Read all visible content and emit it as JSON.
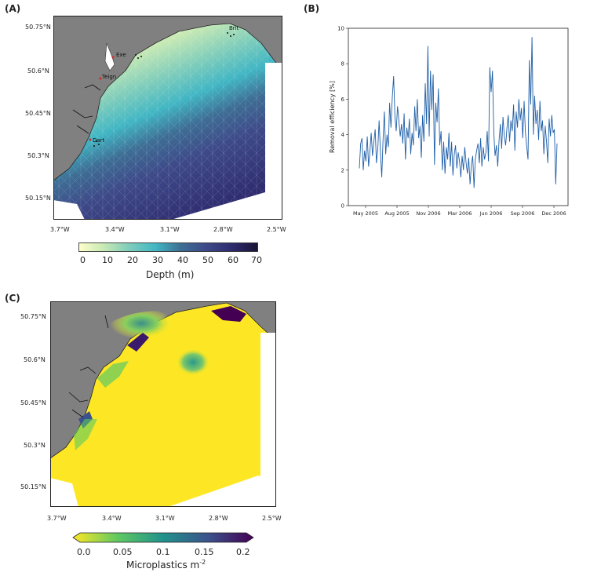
{
  "panels": {
    "a_label": "(A)",
    "b_label": "(B)",
    "c_label": "(C)"
  },
  "map_axes": {
    "lat_ticks": [
      "50.75°N",
      "50.6°N",
      "50.45°N",
      "50.3°N",
      "50.15°N"
    ],
    "lon_ticks": [
      "3.7°W",
      "3.4°W",
      "3.1°W",
      "2.8°W",
      "2.5°W"
    ]
  },
  "panel_a": {
    "place_labels": [
      "Exe",
      "Teign",
      "Dart",
      "Brit"
    ],
    "colorbar": {
      "title": "Depth (m)",
      "ticks": [
        "0",
        "10",
        "20",
        "30",
        "40",
        "50",
        "60",
        "70"
      ],
      "colors": [
        "#ffffcc",
        "#c7e9b4",
        "#7fcdbb",
        "#41b6c4",
        "#2c7fb8",
        "#3e4a89",
        "#2e2a6e",
        "#1a1335"
      ]
    }
  },
  "panel_c": {
    "colorbar": {
      "title": "Microplastics m",
      "exponent": "-2",
      "ticks": [
        "0.0",
        "0.05",
        "0.1",
        "0.15",
        "0.2"
      ],
      "colors": [
        "#fde725",
        "#5ec962",
        "#21918c",
        "#3b528b",
        "#440154"
      ]
    }
  },
  "chart_data": {
    "type": "line",
    "title": "",
    "xlabel": "",
    "ylabel": "Removal efficiency [%]",
    "ylim": [
      0,
      10
    ],
    "yticks": [
      "0",
      "2",
      "4",
      "6",
      "8",
      "10"
    ],
    "xticks": [
      "May 2005",
      "Aug 2005",
      "Nov 2006",
      "Mar 2006",
      "Jun 2006",
      "Sep 2006",
      "Dec 2006"
    ],
    "line_color": "#1f5fa8",
    "series": [
      {
        "name": "Removal efficiency",
        "values": [
          2.1,
          3.5,
          3.8,
          2.0,
          3.1,
          2.5,
          3.9,
          2.2,
          3.0,
          4.1,
          2.8,
          3.6,
          4.3,
          2.4,
          3.2,
          4.8,
          3.0,
          1.6,
          3.7,
          5.3,
          2.9,
          4.0,
          3.3,
          5.8,
          4.4,
          6.1,
          7.3,
          5.0,
          4.2,
          5.6,
          4.8,
          3.9,
          4.6,
          3.5,
          5.2,
          2.6,
          4.4,
          3.8,
          4.9,
          2.9,
          4.1,
          3.4,
          5.6,
          4.2,
          6.0,
          3.8,
          4.5,
          2.7,
          5.1,
          3.6,
          6.9,
          4.6,
          9.0,
          3.9,
          7.6,
          5.4,
          7.4,
          2.3,
          5.8,
          4.7,
          6.6,
          3.4,
          4.2,
          2.0,
          3.6,
          1.8,
          3.3,
          2.6,
          4.1,
          2.2,
          3.6,
          1.7,
          2.9,
          3.4,
          2.1,
          3.0,
          2.5,
          1.6,
          2.8,
          2.0,
          3.3,
          2.4,
          1.8,
          2.7,
          1.2,
          2.3,
          2.8,
          1.0,
          2.6,
          3.1,
          3.5,
          2.4,
          3.8,
          2.2,
          3.3,
          2.6,
          3.0,
          4.2,
          2.5,
          7.8,
          6.4,
          7.6,
          4.1,
          2.8,
          3.4,
          2.2,
          3.7,
          4.6,
          3.2,
          5.0,
          3.9,
          3.4,
          4.4,
          5.1,
          3.6,
          4.8,
          4.2,
          5.7,
          3.1,
          5.3,
          4.4,
          6.0,
          4.8,
          5.5,
          3.8,
          5.9,
          4.1,
          3.3,
          2.6,
          8.2,
          5.7,
          9.5,
          4.0,
          6.2,
          4.6,
          5.4,
          3.7,
          5.9,
          4.2,
          4.8,
          2.9,
          4.5,
          3.6,
          2.4,
          4.9,
          3.9,
          5.1,
          4.1,
          4.3,
          1.2,
          3.5
        ]
      }
    ]
  }
}
